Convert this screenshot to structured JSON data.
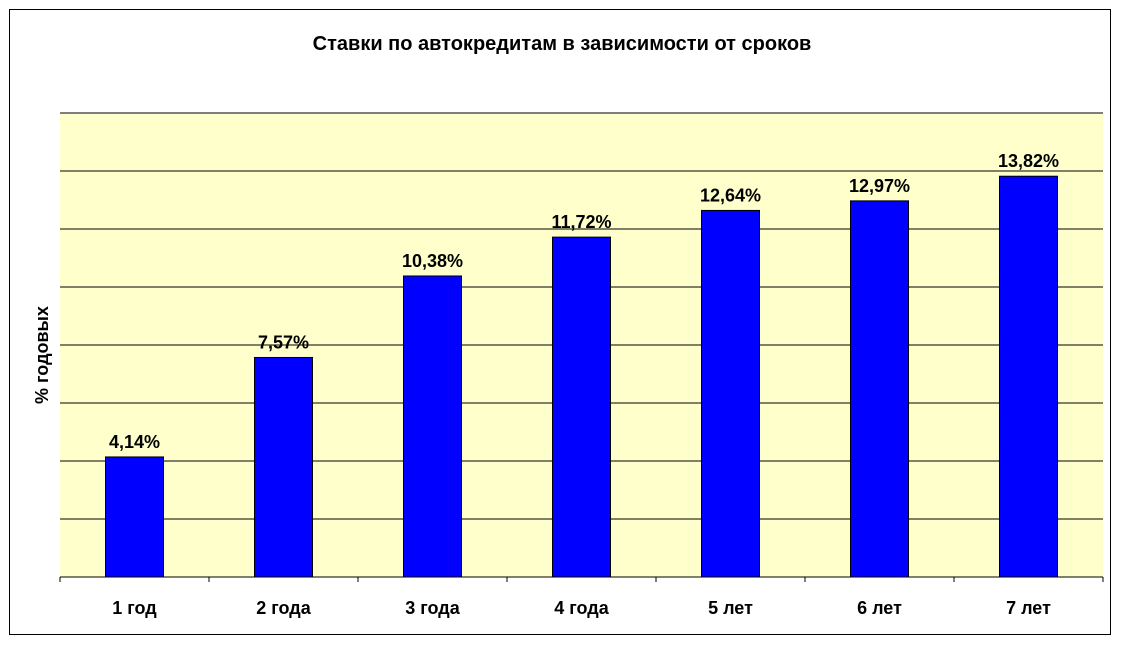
{
  "colors": {
    "plot_background": "#ffffcc",
    "bar_fill": "#0000ff",
    "bar_stroke": "#000000",
    "gridline": "#000000",
    "text": "#000000"
  },
  "chart_data": {
    "type": "bar",
    "title": "Ставки по автокредитам в зависимости от сроков",
    "xlabel": "",
    "ylabel": "% годовых",
    "categories": [
      "1 год",
      "2 года",
      "3 года",
      "4 года",
      "5 лет",
      "6 лет",
      "7 лет"
    ],
    "values": [
      4.14,
      7.57,
      10.38,
      11.72,
      12.64,
      12.97,
      13.82
    ],
    "data_labels": [
      "4,14%",
      "7,57%",
      "10,38%",
      "11,72%",
      "12,64%",
      "12,97%",
      "13,82%"
    ],
    "ylim": [
      0,
      16
    ],
    "y_grid_step": 2,
    "grid": true,
    "legend": "none",
    "y_tick_labels_visible": false
  }
}
